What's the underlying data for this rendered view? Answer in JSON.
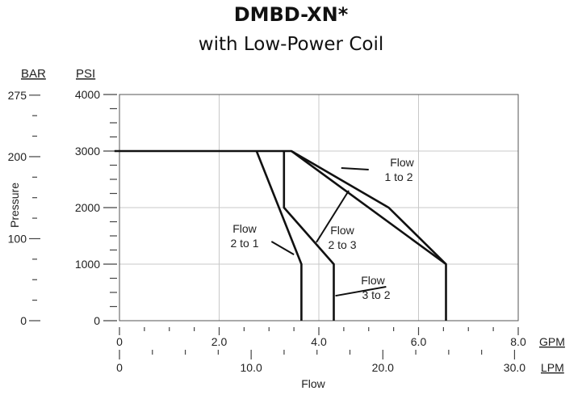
{
  "chart_data": {
    "type": "line",
    "title": "DMBD-XN*",
    "subtitle": "with Low-Power Coil",
    "ylabel": "Pressure",
    "xlabel": "Flow",
    "y_axes": [
      {
        "unit": "BAR",
        "ticks": [
          "275",
          "200",
          "100",
          "0"
        ]
      },
      {
        "unit": "PSI",
        "ticks": [
          "4000",
          "3000",
          "2000",
          "1000",
          "0"
        ],
        "ylim": [
          0,
          4000
        ]
      }
    ],
    "x_axes": [
      {
        "unit": "GPM",
        "ticks": [
          "0",
          "2.0",
          "4.0",
          "6.0",
          "8.0"
        ],
        "xlim": [
          0,
          8
        ]
      },
      {
        "unit": "LPM",
        "ticks": [
          "0",
          "10.0",
          "20.0",
          "30.0"
        ]
      }
    ],
    "grid": true,
    "series": [
      {
        "name": "Flow 1 to 2",
        "x_unit": "GPM",
        "y_unit": "PSI",
        "points": [
          [
            -0.1,
            3000
          ],
          [
            3.45,
            3000
          ],
          [
            5.4,
            2000
          ],
          [
            6.55,
            1000
          ],
          [
            6.55,
            0
          ]
        ]
      },
      {
        "name": "Flow 2 to 3",
        "x_unit": "GPM",
        "y_unit": "PSI",
        "points": [
          [
            3.45,
            3000
          ],
          [
            6.55,
            1000
          ]
        ]
      },
      {
        "name": "Flow 2 to 1",
        "x_unit": "GPM",
        "y_unit": "PSI",
        "points": [
          [
            2.75,
            3000
          ],
          [
            3.65,
            1000
          ],
          [
            3.65,
            0
          ]
        ]
      },
      {
        "name": "Flow 3 to 2",
        "x_unit": "GPM",
        "y_unit": "PSI",
        "points": [
          [
            3.3,
            3000
          ],
          [
            3.3,
            2000
          ],
          [
            4.3,
            1000
          ],
          [
            4.3,
            0
          ]
        ]
      }
    ],
    "annotations": [
      {
        "lines": [
          "Flow",
          "1 to 2"
        ]
      },
      {
        "lines": [
          "Flow",
          "2 to 3"
        ]
      },
      {
        "lines": [
          "Flow",
          "2 to 1"
        ]
      },
      {
        "lines": [
          "Flow",
          "3 to 2"
        ]
      }
    ]
  }
}
